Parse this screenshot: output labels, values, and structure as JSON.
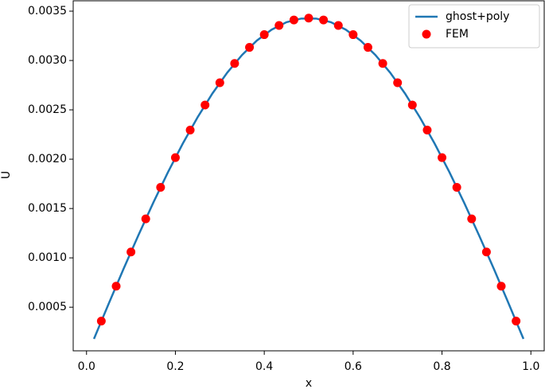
{
  "chart_data": {
    "type": "line",
    "xlabel": "x",
    "ylabel": "U",
    "xlim": [
      -0.03,
      1.03
    ],
    "ylim": [
      5.8e-05,
      0.003605
    ],
    "xticks": [
      {
        "value": 0,
        "label": "0.0"
      },
      0.2,
      0.4,
      0.6,
      0.8,
      {
        "value": 1,
        "label": "1.0"
      }
    ],
    "yticks": [
      0.0005,
      {
        "value": 0.001,
        "label": "0.0010"
      },
      0.0015,
      {
        "value": 0.002,
        "label": "0.0020"
      },
      0.0025,
      {
        "value": 0.003,
        "label": "0.0030"
      },
      0.0035
    ],
    "legend": "upper right",
    "series": [
      {
        "name": "ghost+poly",
        "color": "#1f77b4",
        "style": "line",
        "x": [
          0.0167,
          0.05,
          0.0833,
          0.1167,
          0.15,
          0.1833,
          0.2167,
          0.25,
          0.2833,
          0.3167,
          0.35,
          0.3833,
          0.4167,
          0.45,
          0.4833,
          0.5167,
          0.55,
          0.5833,
          0.6167,
          0.65,
          0.6833,
          0.7167,
          0.75,
          0.7833,
          0.8167,
          0.85,
          0.8833,
          0.9167,
          0.95,
          0.9833
        ],
        "values": [
          0.000179,
          0.000537,
          0.000888,
          0.001229,
          0.001557,
          0.001868,
          0.002159,
          0.002425,
          0.002666,
          0.002877,
          0.003056,
          0.003202,
          0.003313,
          0.003388,
          0.003425,
          0.003425,
          0.003388,
          0.003313,
          0.003202,
          0.003056,
          0.002877,
          0.002666,
          0.002425,
          0.002159,
          0.001868,
          0.001557,
          0.001229,
          0.000888,
          0.000537,
          0.000179
        ]
      },
      {
        "name": "FEM",
        "color": "#ff0000",
        "style": "markers",
        "x": [
          0.0333,
          0.0667,
          0.1,
          0.1333,
          0.1667,
          0.2,
          0.2333,
          0.2667,
          0.3,
          0.3333,
          0.3667,
          0.4,
          0.4333,
          0.4667,
          0.5,
          0.5333,
          0.5667,
          0.6,
          0.6333,
          0.6667,
          0.7,
          0.7333,
          0.7667,
          0.8,
          0.8333,
          0.8667,
          0.9,
          0.9333,
          0.9667
        ],
        "values": [
          0.000359,
          0.000713,
          0.00106,
          0.001395,
          0.001715,
          0.002016,
          0.002295,
          0.002549,
          0.002775,
          0.00297,
          0.003133,
          0.003262,
          0.003355,
          0.003411,
          0.00343,
          0.003411,
          0.003355,
          0.003262,
          0.003133,
          0.00297,
          0.002775,
          0.002549,
          0.002295,
          0.002016,
          0.001715,
          0.001395,
          0.00106,
          0.000713,
          0.000359
        ]
      }
    ]
  }
}
